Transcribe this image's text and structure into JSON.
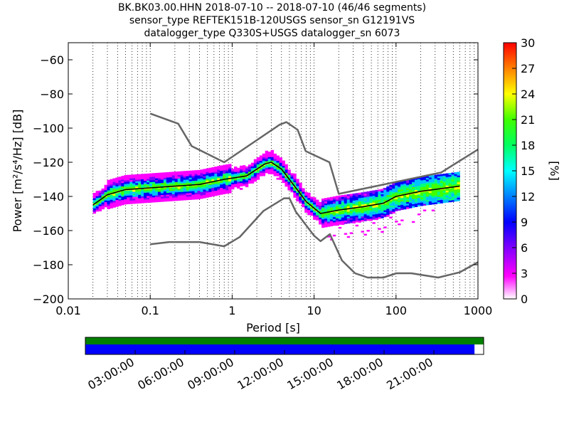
{
  "title_lines": [
    "BK.BK03.00.HHN   2018-07-10 -- 2018-07-10  (46/46 segments)",
    "sensor_type REFTEK151B-120USGS sensor_sn G12191VS",
    "datalogger_type Q330S+USGS datalogger_sn 6073"
  ],
  "chart_data": {
    "type": "heatmap",
    "xlabel": "Period [s]",
    "ylabel": "Power [m²/s⁴/Hz] [dB]",
    "xscale": "log",
    "xlim": [
      0.01,
      1000
    ],
    "ylim": [
      -200,
      -50
    ],
    "x_ticks": [
      0.01,
      0.1,
      1,
      10,
      100,
      1000
    ],
    "x_tick_labels": [
      "0.01",
      "0.1",
      "1",
      "10",
      "100",
      "1000"
    ],
    "y_ticks": [
      -200,
      -180,
      -160,
      -140,
      -120,
      -100,
      -80,
      -60
    ],
    "y_tick_labels": [
      "−200",
      "−180",
      "−160",
      "−140",
      "−120",
      "−100",
      "−80",
      "−60"
    ],
    "grid": "dotted vertical",
    "noise_model_high": {
      "x": [
        0.1,
        0.22,
        0.32,
        0.8,
        3.8,
        4.6,
        6.3,
        7.9,
        15.4,
        20,
        354.8,
        1000
      ],
      "y": [
        -91.5,
        -97.4,
        -110.5,
        -120,
        -98,
        -96.5,
        -101,
        -113.5,
        -120,
        -138.5,
        -126,
        -112.5
      ]
    },
    "noise_model_low": {
      "x": [
        0.1,
        0.17,
        0.4,
        0.8,
        1.24,
        2.4,
        4.3,
        5,
        6,
        10,
        12,
        15.6,
        21.9,
        31.6,
        45,
        70,
        101,
        154,
        328,
        600,
        1000
      ],
      "y": [
        -168,
        -166.7,
        -166.7,
        -169.2,
        -163.7,
        -148.6,
        -141.1,
        -141.1,
        -149,
        -163,
        -166.2,
        -162.1,
        -177.5,
        -185,
        -187.5,
        -187.5,
        -185,
        -185,
        -187.5,
        -184.4,
        -178.5
      ]
    },
    "mode_curve": {
      "x": [
        0.02,
        0.03,
        0.05,
        0.1,
        0.2,
        0.4,
        0.8,
        1.5,
        2.5,
        3,
        4,
        6,
        8,
        12,
        20,
        40,
        70,
        100,
        200,
        600
      ],
      "y": [
        -145,
        -139,
        -136,
        -135,
        -134,
        -133,
        -130,
        -128,
        -121,
        -120,
        -124,
        -135,
        -143,
        -150,
        -148,
        -146,
        -144,
        -140,
        -137,
        -134
      ]
    },
    "colorbar": {
      "label": "[%]",
      "min": 0,
      "max": 30,
      "ticks": [
        0,
        3,
        6,
        9,
        12,
        15,
        18,
        21,
        24,
        27,
        30
      ],
      "colors": [
        "#ffffff",
        "#ff00ff",
        "#7f00ff",
        "#0000ff",
        "#0080ff",
        "#00ffff",
        "#00ff80",
        "#00ff00",
        "#80ff00",
        "#ffff00",
        "#ff8000",
        "#ff0000"
      ]
    }
  },
  "time_coverage": {
    "tick_labels": [
      "03:00:00",
      "06:00:00",
      "09:00:00",
      "12:00:00",
      "15:00:00",
      "18:00:00",
      "21:00:00"
    ],
    "coverage_fraction": 0.977,
    "color_top": "#008000",
    "color_bottom": "#0000ff"
  }
}
